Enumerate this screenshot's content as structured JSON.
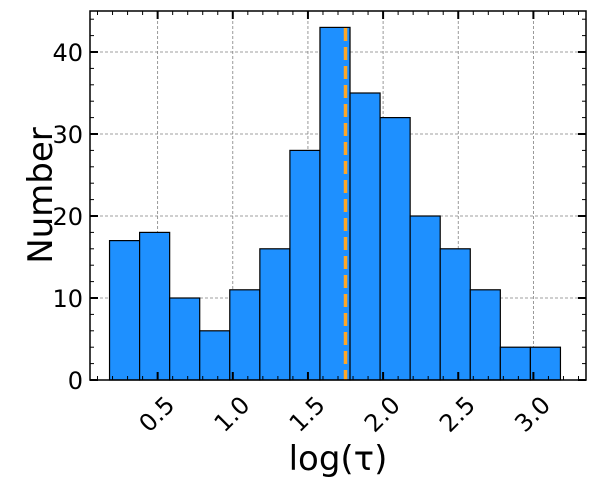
{
  "chart_data": {
    "type": "bar",
    "subtype": "histogram",
    "xlabel": "log(τ)",
    "ylabel": "Number",
    "xlim": [
      0.05,
      3.35
    ],
    "ylim": [
      0,
      45
    ],
    "xticks": [
      0.5,
      1.0,
      1.5,
      2.0,
      2.5,
      3.0
    ],
    "xtick_labels": [
      "0.5",
      "1.0",
      "1.5",
      "2.0",
      "2.5",
      "3.0"
    ],
    "yticks": [
      0,
      10,
      20,
      30,
      40
    ],
    "ytick_labels": [
      "0",
      "10",
      "20",
      "30",
      "40"
    ],
    "bin_edges": [
      0.18,
      0.38,
      0.58,
      0.78,
      0.98,
      1.18,
      1.38,
      1.58,
      1.78,
      1.98,
      2.18,
      2.38,
      2.58,
      2.78,
      2.98,
      3.18
    ],
    "values": [
      17,
      18,
      10,
      6,
      11,
      16,
      28,
      43,
      35,
      32,
      20,
      16,
      11,
      4,
      4
    ],
    "vline": {
      "x": 1.75,
      "style": "dashed",
      "color": "#FFA726"
    },
    "grid": true,
    "colors": {
      "bar_fill": "#1E90FF",
      "bar_edge": "#000000"
    }
  }
}
